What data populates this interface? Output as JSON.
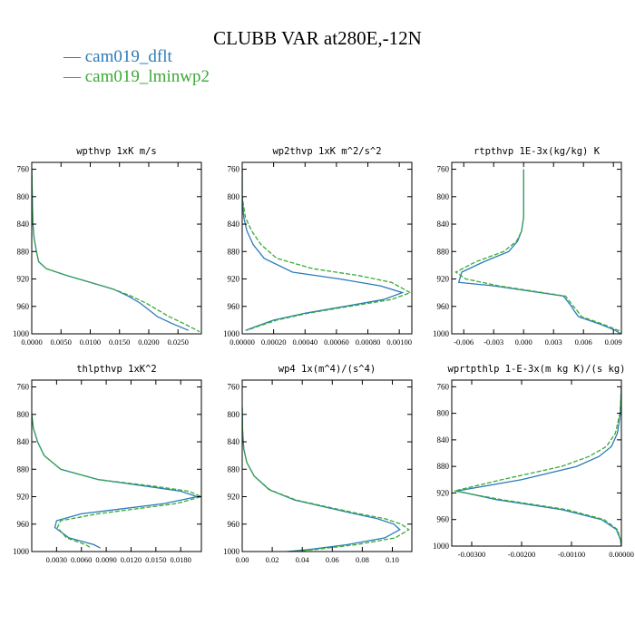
{
  "figure": {
    "title": "CLUBB VAR at280E,-12N",
    "legend": [
      {
        "label": "cam019_dflt",
        "color": "#2b7bba"
      },
      {
        "label": "cam019_lminwp2",
        "color": "#3aaa35"
      }
    ]
  },
  "chart_data": [
    {
      "type": "line",
      "title": "wpthvp  1xK m/s",
      "xlim": [
        0.0,
        0.029
      ],
      "xticks": [
        "0.0000",
        "0.0050",
        "0.0100",
        "0.0150",
        "0.0200",
        "0.0250"
      ],
      "xtick_values": [
        0.0,
        0.005,
        0.01,
        0.015,
        0.02,
        0.025
      ],
      "ylim": [
        1000,
        750
      ],
      "yticks": [
        "760",
        "800",
        "840",
        "880",
        "920",
        "960",
        "1000"
      ],
      "ytick_values": [
        760,
        800,
        840,
        880,
        920,
        960,
        1000
      ],
      "series": [
        {
          "name": "cam019_dflt",
          "style": "solid",
          "x": [
            0.0,
            0.0001,
            0.0002,
            0.0004,
            0.0008,
            0.0012,
            0.0025,
            0.006,
            0.01,
            0.014,
            0.0165,
            0.0185,
            0.02,
            0.0215,
            0.024,
            0.0268
          ],
          "y": [
            760,
            800,
            840,
            860,
            880,
            895,
            905,
            915,
            925,
            935,
            945,
            955,
            965,
            975,
            985,
            995
          ]
        },
        {
          "name": "cam019_lminwp2",
          "style": "dashed",
          "x": [
            0.0,
            0.0001,
            0.0002,
            0.0004,
            0.0008,
            0.0012,
            0.0025,
            0.006,
            0.01,
            0.014,
            0.017,
            0.0195,
            0.0215,
            0.0235,
            0.026,
            0.0287
          ],
          "y": [
            760,
            800,
            840,
            860,
            880,
            895,
            905,
            915,
            925,
            935,
            945,
            955,
            965,
            975,
            985,
            997
          ]
        }
      ]
    },
    {
      "type": "line",
      "title": "wp2thvp  1xK m^2/s^2",
      "xlim": [
        0.0,
        0.00108
      ],
      "xticks": [
        "0.00000",
        "0.00020",
        "0.00040",
        "0.00060",
        "0.00080",
        "0.00100"
      ],
      "xtick_values": [
        0.0,
        0.0002,
        0.0004,
        0.0006,
        0.0008,
        0.001
      ],
      "ylim": [
        1000,
        750
      ],
      "yticks": [
        "760",
        "800",
        "840",
        "880",
        "920",
        "960",
        "1000"
      ],
      "ytick_values": [
        760,
        800,
        840,
        880,
        920,
        960,
        1000
      ],
      "series": [
        {
          "name": "cam019_dflt",
          "style": "solid",
          "x": [
            0.0,
            0.0,
            1e-05,
            3e-05,
            7e-05,
            0.00014,
            0.00032,
            0.00062,
            0.00088,
            0.00102,
            0.0009,
            0.00065,
            0.0004,
            0.0002,
            8e-05,
            2e-05
          ],
          "y": [
            760,
            800,
            830,
            850,
            870,
            890,
            910,
            920,
            930,
            940,
            950,
            960,
            970,
            980,
            990,
            995
          ]
        },
        {
          "name": "cam019_lminwp2",
          "style": "dashed",
          "x": [
            0.0,
            0.0,
            2e-05,
            6e-05,
            0.00012,
            0.00022,
            0.00045,
            0.00074,
            0.00095,
            0.00107,
            0.00095,
            0.00068,
            0.00042,
            0.00022,
            9e-05,
            3e-05
          ],
          "y": [
            760,
            800,
            830,
            850,
            870,
            890,
            905,
            915,
            925,
            940,
            950,
            960,
            970,
            980,
            990,
            995
          ]
        }
      ]
    },
    {
      "type": "line",
      "title": "rtpthvp  1E-3x(kg/kg) K",
      "xlim": [
        -0.0072,
        0.0098
      ],
      "xticks": [
        "-0.006",
        "-0.003",
        "0.000",
        "0.003",
        "0.006",
        "0.009"
      ],
      "xtick_values": [
        -0.006,
        -0.003,
        0.0,
        0.003,
        0.006,
        0.009
      ],
      "ylim": [
        1000,
        750
      ],
      "yticks": [
        "760",
        "800",
        "840",
        "880",
        "920",
        "960",
        "1000"
      ],
      "ytick_values": [
        760,
        800,
        840,
        880,
        920,
        960,
        1000
      ],
      "series": [
        {
          "name": "cam019_dflt",
          "style": "solid",
          "x": [
            0.0,
            0.0,
            -0.0002,
            -0.0006,
            -0.0015,
            -0.004,
            -0.0062,
            -0.0065,
            -0.003,
            0.004,
            0.0048,
            0.005,
            0.0055,
            0.0075,
            0.0092,
            0.0097
          ],
          "y": [
            760,
            830,
            850,
            865,
            880,
            895,
            910,
            925,
            930,
            945,
            960,
            965,
            975,
            985,
            995,
            1000
          ]
        },
        {
          "name": "cam019_lminwp2",
          "style": "dashed",
          "x": [
            0.0,
            0.0,
            -0.0002,
            -0.0007,
            -0.002,
            -0.0048,
            -0.0068,
            -0.0058,
            -0.0025,
            0.0042,
            0.005,
            0.0053,
            0.0058,
            0.0078,
            0.0095,
            0.0098
          ],
          "y": [
            760,
            830,
            850,
            865,
            880,
            895,
            910,
            920,
            930,
            945,
            960,
            965,
            975,
            985,
            995,
            1000
          ]
        }
      ]
    },
    {
      "type": "line",
      "title": "thlpthvp  1xK^2",
      "xlim": [
        0.0,
        0.0205
      ],
      "xticks": [
        "0.0030",
        "0.0060",
        "0.0090",
        "0.0120",
        "0.0150",
        "0.0180"
      ],
      "xtick_values": [
        0.003,
        0.006,
        0.009,
        0.012,
        0.015,
        0.018
      ],
      "ylim": [
        1000,
        750
      ],
      "yticks": [
        "760",
        "800",
        "840",
        "880",
        "920",
        "960",
        "1000"
      ],
      "ytick_values": [
        760,
        800,
        840,
        880,
        920,
        960,
        1000
      ],
      "series": [
        {
          "name": "cam019_dflt",
          "style": "solid",
          "x": [
            0.0,
            0.0002,
            0.0007,
            0.0015,
            0.0035,
            0.008,
            0.014,
            0.018,
            0.02,
            0.016,
            0.006,
            0.003,
            0.0028,
            0.0045,
            0.0075,
            0.0083
          ],
          "y": [
            800,
            820,
            840,
            860,
            880,
            895,
            905,
            912,
            920,
            930,
            945,
            955,
            965,
            980,
            990,
            995
          ]
        },
        {
          "name": "cam019_lminwp2",
          "style": "dashed",
          "x": [
            0.0,
            0.0002,
            0.0007,
            0.0015,
            0.0035,
            0.008,
            0.015,
            0.019,
            0.0205,
            0.0175,
            0.008,
            0.0035,
            0.0031,
            0.0042,
            0.0065,
            0.0072
          ],
          "y": [
            800,
            820,
            840,
            860,
            880,
            895,
            905,
            912,
            920,
            930,
            945,
            955,
            965,
            980,
            990,
            995
          ]
        }
      ]
    },
    {
      "type": "line",
      "title": "wp4  1x(m^4)/(s^4)",
      "xlim": [
        0.0,
        0.113
      ],
      "xticks": [
        "0.00",
        "0.02",
        "0.04",
        "0.06",
        "0.08",
        "0.10"
      ],
      "xtick_values": [
        0.0,
        0.02,
        0.04,
        0.06,
        0.08,
        0.1
      ],
      "ylim": [
        1000,
        750
      ],
      "yticks": [
        "760",
        "800",
        "840",
        "880",
        "920",
        "960",
        "1000"
      ],
      "ytick_values": [
        760,
        800,
        840,
        880,
        920,
        960,
        1000
      ],
      "series": [
        {
          "name": "cam019_dflt",
          "style": "solid",
          "x": [
            0.0,
            0.0002,
            0.001,
            0.003,
            0.008,
            0.018,
            0.035,
            0.055,
            0.075,
            0.09,
            0.101,
            0.105,
            0.095,
            0.07,
            0.045,
            0.03
          ],
          "y": [
            790,
            820,
            850,
            870,
            890,
            910,
            925,
            935,
            945,
            952,
            960,
            968,
            980,
            990,
            997,
            1000
          ]
        },
        {
          "name": "cam019_lminwp2",
          "style": "dashed",
          "x": [
            0.0,
            0.0002,
            0.001,
            0.003,
            0.008,
            0.0185,
            0.036,
            0.057,
            0.078,
            0.095,
            0.106,
            0.111,
            0.102,
            0.076,
            0.049,
            0.033
          ],
          "y": [
            790,
            820,
            850,
            870,
            890,
            910,
            925,
            935,
            945,
            952,
            960,
            968,
            980,
            990,
            997,
            1000
          ]
        }
      ]
    },
    {
      "type": "line",
      "title": "wprtpthlp  1-E-3x(m kg K)/(s kg)",
      "xlim": [
        -0.0034,
        0.0
      ],
      "xticks": [
        "-0.00300",
        "-0.00200",
        "-0.00100",
        "0.00000"
      ],
      "xtick_values": [
        -0.003,
        -0.002,
        -0.001,
        0.0
      ],
      "ylim": [
        1000,
        750
      ],
      "yticks": [
        "760",
        "800",
        "840",
        "880",
        "920",
        "960",
        "1000"
      ],
      "ytick_values": [
        760,
        800,
        840,
        880,
        920,
        960,
        1000
      ],
      "series": [
        {
          "name": "cam019_dflt",
          "style": "solid",
          "x": [
            0.0,
            -2e-05,
            -8e-05,
            -0.0002,
            -0.00045,
            -0.0009,
            -0.002,
            -0.0033,
            -0.0025,
            -0.0012,
            -0.0004,
            -0.0001,
            -2e-05,
            0.0
          ],
          "y": [
            760,
            800,
            830,
            850,
            865,
            880,
            900,
            917,
            930,
            945,
            960,
            975,
            990,
            1000
          ]
        },
        {
          "name": "cam019_lminwp2",
          "style": "dashed",
          "x": [
            0.0,
            -3e-05,
            -0.00012,
            -0.0003,
            -0.00065,
            -0.0012,
            -0.0024,
            -0.00335,
            -0.0024,
            -0.0011,
            -0.00035,
            -8e-05,
            -2e-05,
            0.0
          ],
          "y": [
            760,
            800,
            830,
            850,
            865,
            880,
            900,
            917,
            930,
            945,
            960,
            975,
            990,
            1000
          ]
        }
      ]
    }
  ]
}
